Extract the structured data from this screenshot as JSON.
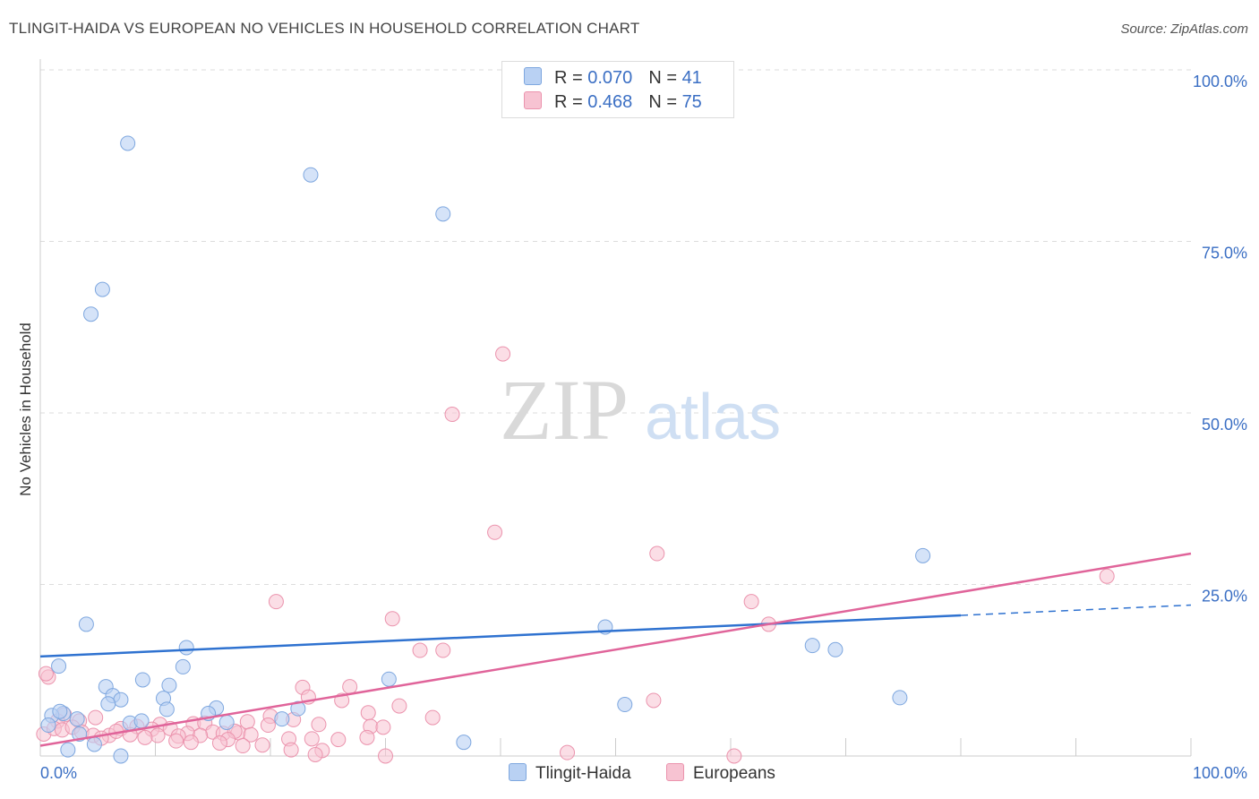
{
  "header": {
    "title": "TLINGIT-HAIDA VS EUROPEAN NO VEHICLES IN HOUSEHOLD CORRELATION CHART",
    "source": "Source: ZipAtlas.com"
  },
  "watermark": {
    "zip": "ZIP",
    "atlas": "atlas"
  },
  "colors": {
    "blue_fill": "#b9d1f3",
    "blue_stroke": "#7ea7df",
    "blue_line": "#2f72d0",
    "pink_fill": "#f7c3d2",
    "pink_stroke": "#eb93ad",
    "pink_line": "#e0649a",
    "tick_label": "#3b6fc4",
    "grid": "#dddddd"
  },
  "legend_top": {
    "rows": [
      {
        "r_label": "R = ",
        "r_value": "0.070",
        "n_label": "N = ",
        "n_value": "41"
      },
      {
        "r_label": "R = ",
        "r_value": "0.468",
        "n_label": "N = ",
        "n_value": "75"
      }
    ]
  },
  "legend_bottom": {
    "items": [
      "Tlingit-Haida",
      "Europeans"
    ]
  },
  "chart_data": {
    "type": "scatter",
    "title": "TLINGIT-HAIDA VS EUROPEAN NO VEHICLES IN HOUSEHOLD CORRELATION CHART",
    "xlabel": "",
    "ylabel": "No Vehicles in Household",
    "xlim": [
      0,
      100
    ],
    "ylim": [
      0,
      100
    ],
    "x_tick_labels": [
      "0.0%",
      "100.0%"
    ],
    "y_tick_labels": [
      "25.0%",
      "50.0%",
      "75.0%",
      "100.0%"
    ],
    "y_ticks": [
      25,
      50,
      75,
      100
    ],
    "grid": true,
    "legend_position": "top-center",
    "series": [
      {
        "name": "Tlingit-Haida",
        "R": 0.07,
        "N": 41,
        "trend": {
          "x0": 0,
          "y0": 14.5,
          "x1": 80,
          "y1": 20.5,
          "dashed_to_x": 100,
          "dashed_to_y": 22.0
        },
        "points": [
          [
            7.6,
            89.3
          ],
          [
            23.5,
            84.7
          ],
          [
            35.0,
            79.0
          ],
          [
            5.4,
            68.0
          ],
          [
            4.4,
            64.4
          ],
          [
            76.7,
            29.2
          ],
          [
            4.0,
            19.2
          ],
          [
            49.1,
            18.8
          ],
          [
            67.1,
            16.1
          ],
          [
            69.1,
            15.5
          ],
          [
            12.7,
            15.8
          ],
          [
            1.6,
            13.1
          ],
          [
            12.4,
            13.0
          ],
          [
            30.3,
            11.2
          ],
          [
            8.9,
            11.1
          ],
          [
            5.7,
            10.1
          ],
          [
            11.2,
            10.3
          ],
          [
            6.3,
            8.8
          ],
          [
            10.7,
            8.4
          ],
          [
            7.0,
            8.2
          ],
          [
            74.7,
            8.5
          ],
          [
            50.8,
            7.5
          ],
          [
            5.9,
            7.6
          ],
          [
            11.0,
            6.8
          ],
          [
            15.3,
            7.0
          ],
          [
            22.4,
            6.9
          ],
          [
            2.0,
            6.2
          ],
          [
            1.0,
            5.9
          ],
          [
            3.2,
            5.4
          ],
          [
            14.6,
            6.2
          ],
          [
            21.0,
            5.4
          ],
          [
            7.8,
            4.8
          ],
          [
            0.7,
            4.5
          ],
          [
            16.2,
            4.9
          ],
          [
            3.4,
            3.2
          ],
          [
            36.8,
            2.0
          ],
          [
            4.7,
            1.7
          ],
          [
            2.4,
            0.9
          ],
          [
            7.0,
            0.0
          ],
          [
            8.8,
            5.1
          ],
          [
            1.7,
            6.5
          ]
        ]
      },
      {
        "name": "Europeans",
        "R": 0.468,
        "N": 75,
        "trend": {
          "x0": 0,
          "y0": 1.5,
          "x1": 100,
          "y1": 29.5
        },
        "points": [
          [
            40.2,
            58.6
          ],
          [
            35.8,
            49.8
          ],
          [
            39.5,
            32.6
          ],
          [
            53.6,
            29.5
          ],
          [
            92.7,
            26.2
          ],
          [
            20.5,
            22.5
          ],
          [
            61.8,
            22.5
          ],
          [
            30.6,
            20.0
          ],
          [
            63.3,
            19.2
          ],
          [
            33.0,
            15.4
          ],
          [
            35.0,
            15.4
          ],
          [
            0.7,
            11.5
          ],
          [
            0.5,
            12.0
          ],
          [
            22.8,
            10.0
          ],
          [
            26.9,
            10.1
          ],
          [
            23.3,
            8.6
          ],
          [
            26.2,
            8.1
          ],
          [
            53.3,
            8.1
          ],
          [
            31.2,
            7.3
          ],
          [
            20.0,
            5.8
          ],
          [
            28.5,
            6.3
          ],
          [
            34.1,
            5.6
          ],
          [
            2.1,
            6.0
          ],
          [
            4.8,
            5.6
          ],
          [
            1.5,
            5.1
          ],
          [
            3.4,
            5.1
          ],
          [
            10.4,
            4.6
          ],
          [
            13.3,
            4.7
          ],
          [
            14.3,
            4.8
          ],
          [
            18.0,
            5.0
          ],
          [
            19.8,
            4.5
          ],
          [
            24.2,
            4.6
          ],
          [
            28.7,
            4.3
          ],
          [
            29.8,
            4.2
          ],
          [
            7.0,
            4.0
          ],
          [
            8.4,
            4.3
          ],
          [
            9.7,
            3.9
          ],
          [
            11.3,
            4.0
          ],
          [
            12.8,
            3.3
          ],
          [
            15.0,
            3.5
          ],
          [
            17.2,
            3.4
          ],
          [
            6.0,
            3.0
          ],
          [
            7.8,
            3.1
          ],
          [
            10.2,
            3.0
          ],
          [
            12.0,
            2.9
          ],
          [
            13.9,
            3.0
          ],
          [
            15.9,
            3.3
          ],
          [
            16.9,
            3.6
          ],
          [
            18.3,
            3.1
          ],
          [
            16.3,
            2.4
          ],
          [
            21.6,
            2.5
          ],
          [
            23.6,
            2.5
          ],
          [
            25.9,
            2.4
          ],
          [
            28.4,
            2.7
          ],
          [
            15.6,
            1.9
          ],
          [
            17.6,
            1.5
          ],
          [
            19.3,
            1.6
          ],
          [
            21.8,
            0.9
          ],
          [
            24.5,
            0.8
          ],
          [
            0.3,
            3.2
          ],
          [
            1.2,
            4.0
          ],
          [
            1.9,
            3.8
          ],
          [
            2.8,
            4.2
          ],
          [
            3.6,
            3.5
          ],
          [
            4.6,
            3.0
          ],
          [
            5.3,
            2.6
          ],
          [
            6.6,
            3.6
          ],
          [
            9.1,
            2.7
          ],
          [
            11.8,
            2.2
          ],
          [
            13.1,
            2.0
          ],
          [
            22.0,
            5.3
          ],
          [
            23.9,
            0.2
          ],
          [
            30.0,
            0.0
          ],
          [
            45.8,
            0.5
          ],
          [
            60.3,
            0.0
          ]
        ]
      }
    ]
  }
}
